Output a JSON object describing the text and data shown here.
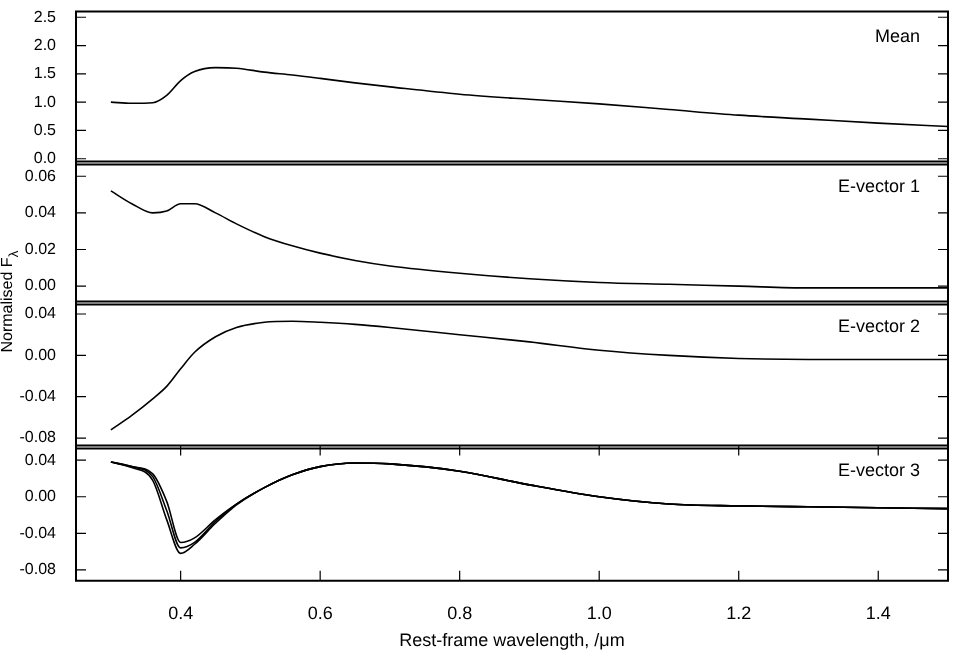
{
  "chart_data": [
    {
      "type": "line",
      "annotations": [
        "Mean"
      ],
      "tick_labels": "y",
      "x": [
        0.3,
        0.33,
        0.36,
        0.38,
        0.4,
        0.42,
        0.45,
        0.48,
        0.52,
        0.56,
        0.6,
        0.65,
        0.7,
        0.8,
        0.9,
        1.0,
        1.1,
        1.2,
        1.3,
        1.4,
        1.5
      ],
      "xlim": [
        0.25,
        1.5
      ],
      "ylim": [
        -0.1,
        2.6
      ],
      "yticks": [
        {
          "value": 0,
          "label": "0.0"
        },
        {
          "value": 0.5,
          "label": "0.5"
        },
        {
          "value": 1,
          "label": "1.0"
        },
        {
          "value": 1.5,
          "label": "1.5"
        },
        {
          "value": 2,
          "label": "2.0"
        },
        {
          "value": 2.5,
          "label": "2.5"
        }
      ],
      "series": [
        {
          "color": "#000000",
          "values": [
            1.0,
            0.98,
            0.99,
            1.12,
            1.38,
            1.54,
            1.61,
            1.6,
            1.53,
            1.48,
            1.42,
            1.34,
            1.27,
            1.14,
            1.05,
            0.97,
            0.87,
            0.77,
            0.7,
            0.63,
            0.57
          ]
        }
      ]
    },
    {
      "type": "line",
      "annotations": [
        "E-vector 1"
      ],
      "ylabel": "Normalised F$_{λ}$",
      "tick_labels": "y",
      "x": [
        0.3,
        0.33,
        0.36,
        0.38,
        0.4,
        0.42,
        0.45,
        0.48,
        0.52,
        0.56,
        0.6,
        0.65,
        0.7,
        0.8,
        0.9,
        1.0,
        1.1,
        1.2,
        1.3,
        1.4,
        1.5
      ],
      "xlim": [
        0.25,
        1.5
      ],
      "ylim": [
        -0.01,
        0.068
      ],
      "yticks": [
        {
          "value": 0,
          "label": "0.00"
        },
        {
          "value": 0.02,
          "label": "0.02"
        },
        {
          "value": 0.04,
          "label": "0.04"
        },
        {
          "value": 0.06,
          "label": "0.06"
        }
      ],
      "series": [
        {
          "color": "#000000",
          "values": [
            0.052,
            0.045,
            0.04,
            0.041,
            0.045,
            0.045,
            0.04,
            0.034,
            0.027,
            0.022,
            0.018,
            0.014,
            0.011,
            0.007,
            0.004,
            0.002,
            0.001,
            0.0,
            -0.001,
            -0.001,
            -0.001
          ]
        }
      ]
    },
    {
      "type": "line",
      "annotations": [
        "E-vector 2"
      ],
      "tick_labels": "y",
      "x": [
        0.3,
        0.33,
        0.36,
        0.38,
        0.4,
        0.42,
        0.45,
        0.48,
        0.52,
        0.56,
        0.6,
        0.65,
        0.7,
        0.8,
        0.9,
        1.0,
        1.1,
        1.2,
        1.3,
        1.4,
        1.5
      ],
      "xlim": [
        0.25,
        1.5
      ],
      "ylim": [
        -0.09,
        0.052
      ],
      "yticks": [
        {
          "value": -0.08,
          "label": "-0.08"
        },
        {
          "value": -0.04,
          "label": "-0.04"
        },
        {
          "value": 0,
          "label": "0.00"
        },
        {
          "value": 0.04,
          "label": "0.04"
        }
      ],
      "series": [
        {
          "color": "#000000",
          "values": [
            -0.072,
            -0.058,
            -0.042,
            -0.03,
            -0.013,
            0.003,
            0.018,
            0.027,
            0.032,
            0.033,
            0.032,
            0.03,
            0.027,
            0.02,
            0.013,
            0.005,
            0.0,
            -0.003,
            -0.004,
            -0.004,
            -0.004
          ]
        }
      ]
    },
    {
      "type": "line",
      "annotations": [
        "E-vector 3"
      ],
      "xlabel": "Rest-frame wavelength, /μm",
      "x": [
        0.3,
        0.33,
        0.36,
        0.38,
        0.4,
        0.42,
        0.45,
        0.48,
        0.52,
        0.56,
        0.6,
        0.65,
        0.7,
        0.8,
        0.9,
        1.0,
        1.1,
        1.2,
        1.3,
        1.4,
        1.5
      ],
      "xlim": [
        0.25,
        1.5
      ],
      "xticks": [
        {
          "value": 0.4,
          "label": "0.4"
        },
        {
          "value": 0.6,
          "label": "0.6"
        },
        {
          "value": 0.8,
          "label": "0.8"
        },
        {
          "value": 1.0,
          "label": "1.0"
        },
        {
          "value": 1.2,
          "label": "1.2"
        },
        {
          "value": 1.4,
          "label": "1.4"
        }
      ],
      "ylim": [
        -0.092,
        0.056
      ],
      "yticks": [
        {
          "value": -0.08,
          "label": "-0.08"
        },
        {
          "value": -0.04,
          "label": "-0.04"
        },
        {
          "value": 0,
          "label": "0.00"
        },
        {
          "value": 0.04,
          "label": "0.04"
        }
      ],
      "series": [
        {
          "color": "#000000",
          "values": [
            0.038,
            0.033,
            0.025,
            -0.005,
            -0.05,
            -0.045,
            -0.025,
            -0.008,
            0.01,
            0.024,
            0.033,
            0.037,
            0.036,
            0.028,
            0.013,
            0.0,
            -0.008,
            -0.01,
            -0.011,
            -0.012,
            -0.013
          ]
        },
        {
          "color": "#000000",
          "values": [
            0.038,
            0.033,
            0.022,
            -0.015,
            -0.056,
            -0.05,
            -0.027,
            -0.008,
            0.01,
            0.024,
            0.033,
            0.037,
            0.036,
            0.028,
            0.013,
            0.0,
            -0.008,
            -0.01,
            -0.011,
            -0.012,
            -0.013
          ]
        },
        {
          "color": "#000000",
          "values": [
            0.038,
            0.032,
            0.018,
            -0.025,
            -0.062,
            -0.052,
            -0.029,
            -0.009,
            0.01,
            0.024,
            0.033,
            0.037,
            0.036,
            0.028,
            0.013,
            0.0,
            -0.008,
            -0.01,
            -0.011,
            -0.012,
            -0.013
          ]
        }
      ]
    }
  ]
}
